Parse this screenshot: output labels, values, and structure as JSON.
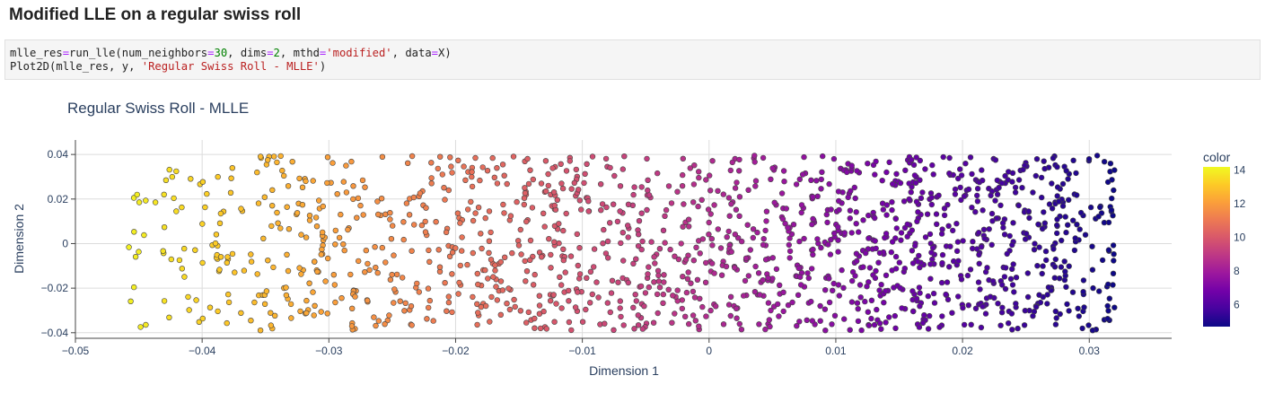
{
  "heading": "Modified LLE on a regular swiss roll",
  "code": {
    "line1": {
      "a": "mlle_res",
      "b": "=",
      "c": "run_lle(num_neighbors",
      "d": "=",
      "e": "30",
      "f": ", dims",
      "g": "=",
      "h": "2",
      "i": ", mthd",
      "j": "=",
      "k": "'modified'",
      "l": ", data",
      "m": "=",
      "n": "X)"
    },
    "line2": {
      "a": "Plot2D(mlle_res, y, ",
      "b": "'Regular Swiss Roll - MLLE'",
      "c": ")"
    }
  },
  "chart_data": {
    "type": "scatter",
    "title": "Regular Swiss Roll - MLLE",
    "xlabel": "Dimension 1",
    "ylabel": "Dimension 2",
    "xlim": [
      -0.05,
      0.0365
    ],
    "ylim": [
      -0.0425,
      0.0465
    ],
    "x_ticks": [
      -0.05,
      -0.04,
      -0.03,
      -0.02,
      -0.01,
      0,
      0.01,
      0.02,
      0.03
    ],
    "x_tick_labels": [
      "−0.05",
      "−0.04",
      "−0.03",
      "−0.02",
      "−0.01",
      "0",
      "0.01",
      "0.02",
      "0.03"
    ],
    "y_ticks": [
      -0.04,
      -0.02,
      0,
      0.02,
      0.04
    ],
    "y_tick_labels": [
      "−0.04",
      "−0.02",
      "0",
      "0.02",
      "0.04"
    ],
    "grid": true,
    "marker_outline": "#444444",
    "point_count": 1500,
    "point_distribution": {
      "x_range": [
        -0.0458,
        0.032
      ],
      "y_range": [
        -0.039,
        0.0395
      ],
      "density": "increasing toward positive x",
      "color_map": "x from -0.0458 to 0.032 maps linearly to color 14.0 down to 4.7"
    },
    "colorbar": {
      "title": "color",
      "range": [
        4.7,
        14.2
      ],
      "ticks": [
        6,
        8,
        10,
        12,
        14
      ],
      "tick_labels": [
        "6",
        "8",
        "10",
        "12",
        "14"
      ],
      "colorscale": "plasma",
      "placement": "right"
    }
  }
}
